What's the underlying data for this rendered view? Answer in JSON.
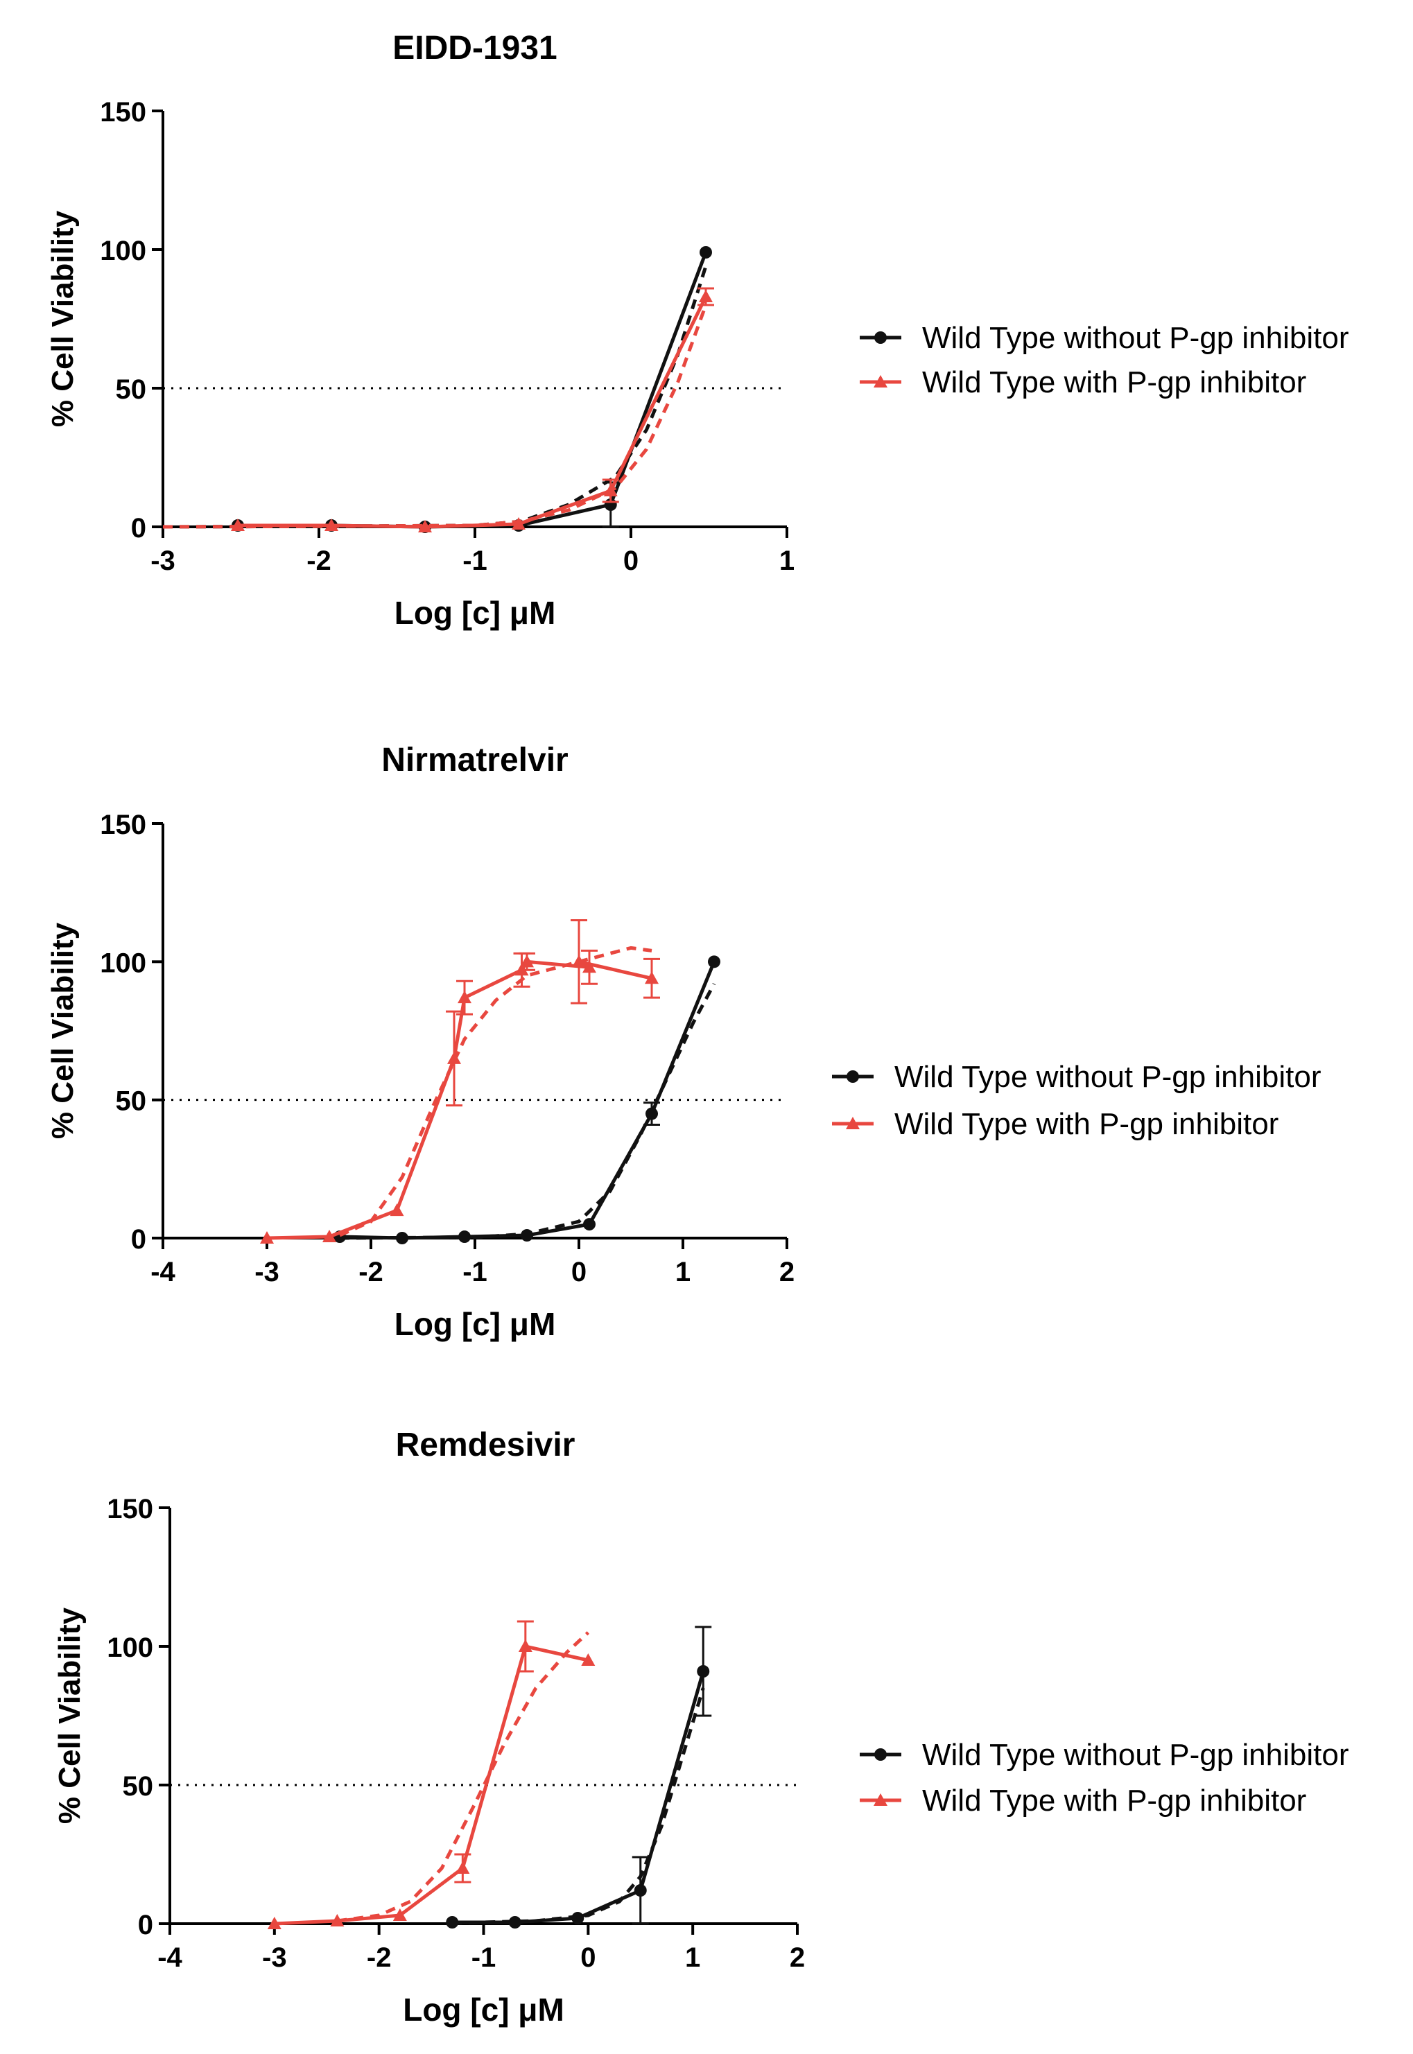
{
  "colors": {
    "black": "#111111",
    "red": "#e8473f",
    "axis": "#000000"
  },
  "chart_data": [
    {
      "type": "line",
      "title": "EIDD-1931",
      "xlabel": "Log [c] μM",
      "ylabel": "% Cell Viability",
      "xlim": [
        -3,
        1
      ],
      "ylim": [
        0,
        150
      ],
      "xticks": [
        -3,
        -2,
        -1,
        0,
        1
      ],
      "yticks": [
        0,
        50,
        100,
        150
      ],
      "reference_line": 50,
      "legend": [
        "Wild Type without P-gp inhibitor",
        "Wild Type with P-gp inhibitor"
      ],
      "series": [
        {
          "name": "Wild Type without P-gp inhibitor",
          "color": "#111111",
          "marker": "circle",
          "x": [
            -2.52,
            -1.92,
            -1.32,
            -0.72,
            -0.13,
            0.48
          ],
          "y": [
            0.5,
            0.5,
            0,
            0.5,
            8,
            99
          ],
          "err": [
            0,
            0,
            0,
            0,
            8,
            0
          ],
          "fit": [
            [
              -3,
              0
            ],
            [
              -2,
              0.2
            ],
            [
              -1,
              0.5
            ],
            [
              -0.7,
              2
            ],
            [
              -0.4,
              8
            ],
            [
              -0.1,
              18
            ],
            [
              0.1,
              35
            ],
            [
              0.3,
              62
            ],
            [
              0.48,
              94
            ]
          ]
        },
        {
          "name": "Wild Type with P-gp inhibitor",
          "color": "#e8473f",
          "marker": "triangle",
          "x": [
            -2.52,
            -1.92,
            -1.32,
            -0.72,
            -0.13,
            0.48
          ],
          "y": [
            0.5,
            0.5,
            0,
            1,
            13,
            83
          ],
          "err": [
            0,
            0,
            0,
            0,
            4,
            3
          ],
          "fit": [
            [
              -3,
              0
            ],
            [
              -2,
              0.2
            ],
            [
              -1,
              0.5
            ],
            [
              -0.7,
              2
            ],
            [
              -0.4,
              6
            ],
            [
              -0.1,
              14
            ],
            [
              0.1,
              28
            ],
            [
              0.3,
              52
            ],
            [
              0.48,
              80
            ]
          ]
        }
      ]
    },
    {
      "type": "line",
      "title": "Nirmatrelvir",
      "xlabel": "Log [c] μM",
      "ylabel": "% Cell Viability",
      "xlim": [
        -4,
        2
      ],
      "ylim": [
        0,
        150
      ],
      "xticks": [
        -4,
        -3,
        -2,
        -1,
        0,
        1,
        2
      ],
      "yticks": [
        0,
        50,
        100,
        150
      ],
      "reference_line": 50,
      "legend": [
        "Wild Type without P-gp inhibitor",
        "Wild Type with P-gp inhibitor"
      ],
      "series": [
        {
          "name": "Wild Type without P-gp inhibitor",
          "color": "#111111",
          "marker": "circle",
          "x": [
            -2.3,
            -1.7,
            -1.1,
            -0.5,
            0.1,
            0.7,
            1.3
          ],
          "y": [
            0.5,
            0,
            0.5,
            1,
            5,
            45,
            100
          ],
          "err": [
            0,
            0,
            0,
            0,
            0,
            4,
            0
          ],
          "fit": [
            [
              -2.3,
              0
            ],
            [
              -1,
              0.3
            ],
            [
              -0.5,
              1.5
            ],
            [
              0,
              6
            ],
            [
              0.3,
              17
            ],
            [
              0.6,
              38
            ],
            [
              0.9,
              62
            ],
            [
              1.1,
              78
            ],
            [
              1.3,
              92
            ]
          ]
        },
        {
          "name": "Wild Type with P-gp inhibitor",
          "color": "#e8473f",
          "marker": "triangle",
          "x": [
            -3.0,
            -2.4,
            -1.75,
            -1.2,
            -1.1,
            -0.55,
            -0.5,
            0.1,
            0,
            0.7
          ],
          "y": [
            0,
            0.5,
            10,
            65,
            87,
            97,
            100,
            98,
            100,
            94
          ],
          "err": [
            0,
            0,
            0,
            17,
            6,
            6,
            3,
            6,
            15,
            7
          ],
          "fit": [
            [
              -2.3,
              1
            ],
            [
              -2.0,
              6
            ],
            [
              -1.7,
              22
            ],
            [
              -1.4,
              48
            ],
            [
              -1.1,
              72
            ],
            [
              -0.8,
              86
            ],
            [
              -0.5,
              95
            ],
            [
              0,
              100
            ],
            [
              0.5,
              105
            ],
            [
              0.7,
              104
            ]
          ]
        }
      ]
    },
    {
      "type": "line",
      "title": "Remdesivir",
      "xlabel": "Log [c] μM",
      "ylabel": "% Cell Viability",
      "xlim": [
        -4,
        2
      ],
      "ylim": [
        0,
        150
      ],
      "xticks": [
        -4,
        -3,
        -2,
        -1,
        0,
        1,
        2
      ],
      "yticks": [
        0,
        50,
        100,
        150
      ],
      "reference_line": 50,
      "legend": [
        "Wild Type without P-gp inhibitor",
        "Wild Type with P-gp inhibitor"
      ],
      "series": [
        {
          "name": "Wild Type without P-gp inhibitor",
          "color": "#111111",
          "marker": "circle",
          "x": [
            -1.3,
            -0.7,
            -0.1,
            0.5,
            1.1
          ],
          "y": [
            0.5,
            0.5,
            2,
            12,
            91
          ],
          "err": [
            0,
            0,
            0,
            12,
            16
          ],
          "fit": [
            [
              -1.3,
              0.2
            ],
            [
              -0.5,
              1
            ],
            [
              0,
              3
            ],
            [
              0.3,
              8
            ],
            [
              0.5,
              17
            ],
            [
              0.7,
              35
            ],
            [
              0.9,
              60
            ],
            [
              1.1,
              85
            ]
          ]
        },
        {
          "name": "Wild Type with P-gp inhibitor",
          "color": "#e8473f",
          "marker": "triangle",
          "x": [
            -3.0,
            -2.4,
            -1.8,
            -1.2,
            -0.6,
            0.0
          ],
          "y": [
            0,
            1,
            3,
            20,
            100,
            95
          ],
          "err": [
            0,
            0,
            0,
            5,
            9,
            0
          ],
          "fit": [
            [
              -2.4,
              1
            ],
            [
              -2.0,
              3
            ],
            [
              -1.7,
              8
            ],
            [
              -1.4,
              20
            ],
            [
              -1.1,
              42
            ],
            [
              -0.8,
              65
            ],
            [
              -0.5,
              85
            ],
            [
              -0.2,
              98
            ],
            [
              0,
              105
            ]
          ]
        }
      ]
    }
  ]
}
